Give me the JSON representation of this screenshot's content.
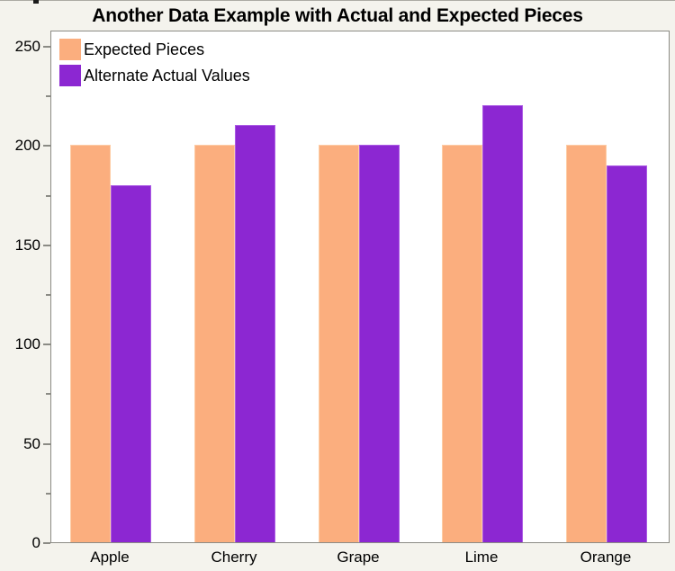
{
  "page": {
    "background": "#F4F3ED",
    "plot_background": "#FFFFFF",
    "frame_color": "#8B8B85"
  },
  "chart_data": {
    "type": "bar",
    "title": "Another Data Example with Actual and Expected Pieces",
    "categories": [
      "Apple",
      "Cherry",
      "Grape",
      "Lime",
      "Orange"
    ],
    "series": [
      {
        "name": "Expected Pieces",
        "color": "#FBAE7E",
        "edge_color": "#FDCDA6",
        "values": [
          200,
          200,
          200,
          200,
          200
        ]
      },
      {
        "name": "Alternate Actual Values",
        "color": "#8C27D2",
        "edge_color": "#AB5BE4",
        "values": [
          180,
          210,
          200,
          220,
          190
        ]
      }
    ],
    "xlabel": "",
    "ylabel": "",
    "y_axis": {
      "major_ticks": [
        0,
        50,
        100,
        150,
        200,
        250
      ],
      "minor_tick_step": 25,
      "range": [
        0,
        256
      ]
    },
    "legend_position": "top-left-inside",
    "grid": false
  }
}
